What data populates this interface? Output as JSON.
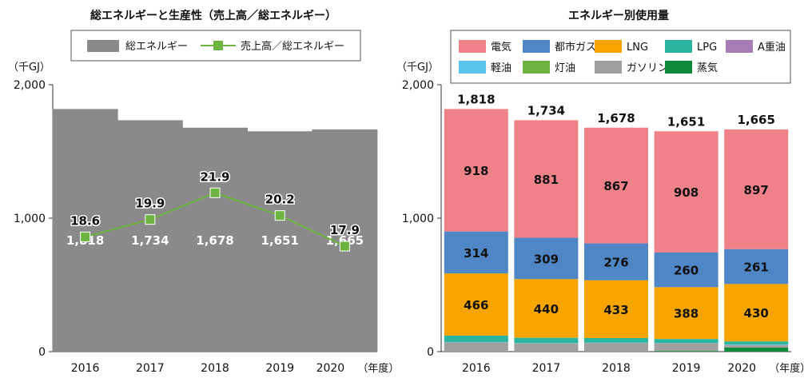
{
  "chart_data": [
    {
      "type": "bar",
      "title": "総エネルギーと生産性（売上高／総エネルギー）",
      "unit_label": "（千GJ）",
      "x_unit": "（年度）",
      "categories": [
        "2016",
        "2017",
        "2018",
        "2019",
        "2020"
      ],
      "ylim": [
        0,
        2000
      ],
      "y_ticks": [
        0,
        1000,
        2000
      ],
      "y_tick_labels": [
        "0",
        "1,000",
        "2,000"
      ],
      "grid": false,
      "legend_position": "top",
      "series": [
        {
          "name": "総エネルギー",
          "type": "bar",
          "color": "#8a8a8a",
          "values": [
            1818,
            1734,
            1678,
            1651,
            1665
          ],
          "labels": [
            "1,818",
            "1,734",
            "1,678",
            "1,651",
            "1,665"
          ]
        },
        {
          "name": "売上高／総エネルギー",
          "type": "line",
          "color": "#6db33f",
          "values": [
            18.6,
            19.9,
            21.9,
            20.2,
            17.9
          ],
          "labels": [
            "18.6",
            "19.9",
            "21.9",
            "20.2",
            "17.9"
          ],
          "secondary_axis_range": [
            10,
            30
          ]
        }
      ]
    },
    {
      "type": "bar",
      "stacked": true,
      "title": "エネルギー別使用量",
      "unit_label": "（千GJ）",
      "x_unit": "（年度）",
      "categories": [
        "2016",
        "2017",
        "2018",
        "2019",
        "2020"
      ],
      "ylim": [
        0,
        2000
      ],
      "y_ticks": [
        0,
        1000,
        2000
      ],
      "y_tick_labels": [
        "0",
        "1,000",
        "2,000"
      ],
      "grid": false,
      "legend_position": "top",
      "totals": [
        1818,
        1734,
        1678,
        1651,
        1665
      ],
      "total_labels": [
        "1,818",
        "1,734",
        "1,678",
        "1,651",
        "1,665"
      ],
      "series": [
        {
          "name": "電気",
          "color": "#ef8189",
          "values": [
            918,
            881,
            867,
            908,
            897
          ],
          "labels": [
            "918",
            "881",
            "867",
            "908",
            "897"
          ]
        },
        {
          "name": "都市ガス",
          "color": "#4f86c6",
          "values": [
            314,
            309,
            276,
            260,
            261
          ],
          "labels": [
            "314",
            "309",
            "276",
            "260",
            "261"
          ]
        },
        {
          "name": "LNG",
          "color": "#f5a400",
          "values": [
            466,
            440,
            433,
            388,
            430
          ],
          "labels": [
            "466",
            "440",
            "433",
            "388",
            "430"
          ]
        },
        {
          "name": "LPG",
          "color": "#2bb5a0",
          "values": [
            48,
            40,
            35,
            30,
            25
          ]
        },
        {
          "name": "A重油",
          "color": "#a77cb5",
          "values": [
            0,
            0,
            0,
            0,
            0
          ]
        },
        {
          "name": "軽油",
          "color": "#5bc4ee",
          "values": [
            2,
            2,
            2,
            2,
            2
          ]
        },
        {
          "name": "灯油",
          "color": "#6db33f",
          "values": [
            0,
            0,
            0,
            0,
            0
          ]
        },
        {
          "name": "ガソリン",
          "color": "#a0a0a0",
          "values": [
            70,
            62,
            65,
            58,
            20
          ]
        },
        {
          "name": "蒸気",
          "color": "#0f8a3c",
          "values": [
            0,
            0,
            0,
            5,
            30
          ]
        }
      ],
      "stack_order_bottom_to_top": [
        "蒸気",
        "ガソリン",
        "灯油",
        "軽油",
        "A重油",
        "LPG",
        "LNG",
        "都市ガス",
        "電気"
      ],
      "legend_order": [
        "電気",
        "都市ガス",
        "LNG",
        "LPG",
        "A重油",
        "軽油",
        "灯油",
        "ガソリン",
        "蒸気"
      ]
    }
  ]
}
